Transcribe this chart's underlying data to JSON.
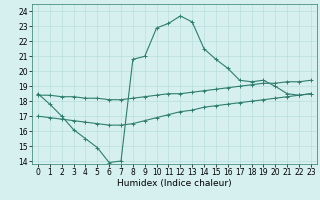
{
  "x_vals": [
    0,
    1,
    2,
    3,
    4,
    5,
    6,
    7,
    8,
    9,
    10,
    11,
    12,
    13,
    14,
    15,
    16,
    17,
    18,
    19,
    20,
    21,
    22,
    23
  ],
  "line1": [
    18.5,
    17.8,
    17.0,
    16.1,
    15.5,
    14.9,
    13.9,
    14.0,
    20.8,
    21.0,
    22.9,
    23.2,
    23.7,
    23.3,
    21.5,
    20.8,
    20.2,
    19.4,
    19.3,
    19.4,
    19.0,
    18.5,
    18.4,
    18.5
  ],
  "line2": [
    18.4,
    18.4,
    18.3,
    18.3,
    18.2,
    18.2,
    18.1,
    18.1,
    18.2,
    18.3,
    18.4,
    18.5,
    18.5,
    18.6,
    18.7,
    18.8,
    18.9,
    19.0,
    19.1,
    19.2,
    19.2,
    19.3,
    19.3,
    19.4
  ],
  "line3": [
    17.0,
    16.9,
    16.8,
    16.7,
    16.6,
    16.5,
    16.4,
    16.4,
    16.5,
    16.7,
    16.9,
    17.1,
    17.3,
    17.4,
    17.6,
    17.7,
    17.8,
    17.9,
    18.0,
    18.1,
    18.2,
    18.3,
    18.4,
    18.5
  ],
  "color": "#2e7d6e",
  "bg_color": "#d6f0f0",
  "grid_color": "#b8dede",
  "xlabel": "Humidex (Indice chaleur)",
  "xlim": [
    -0.5,
    23.5
  ],
  "ylim": [
    13.8,
    24.5
  ],
  "yticks": [
    14,
    15,
    16,
    17,
    18,
    19,
    20,
    21,
    22,
    23,
    24
  ],
  "xticks": [
    0,
    1,
    2,
    3,
    4,
    5,
    6,
    7,
    8,
    9,
    10,
    11,
    12,
    13,
    14,
    15,
    16,
    17,
    18,
    19,
    20,
    21,
    22,
    23
  ],
  "axis_fontsize": 6.5,
  "tick_fontsize": 5.5,
  "lw": 0.8,
  "ms": 2.5
}
